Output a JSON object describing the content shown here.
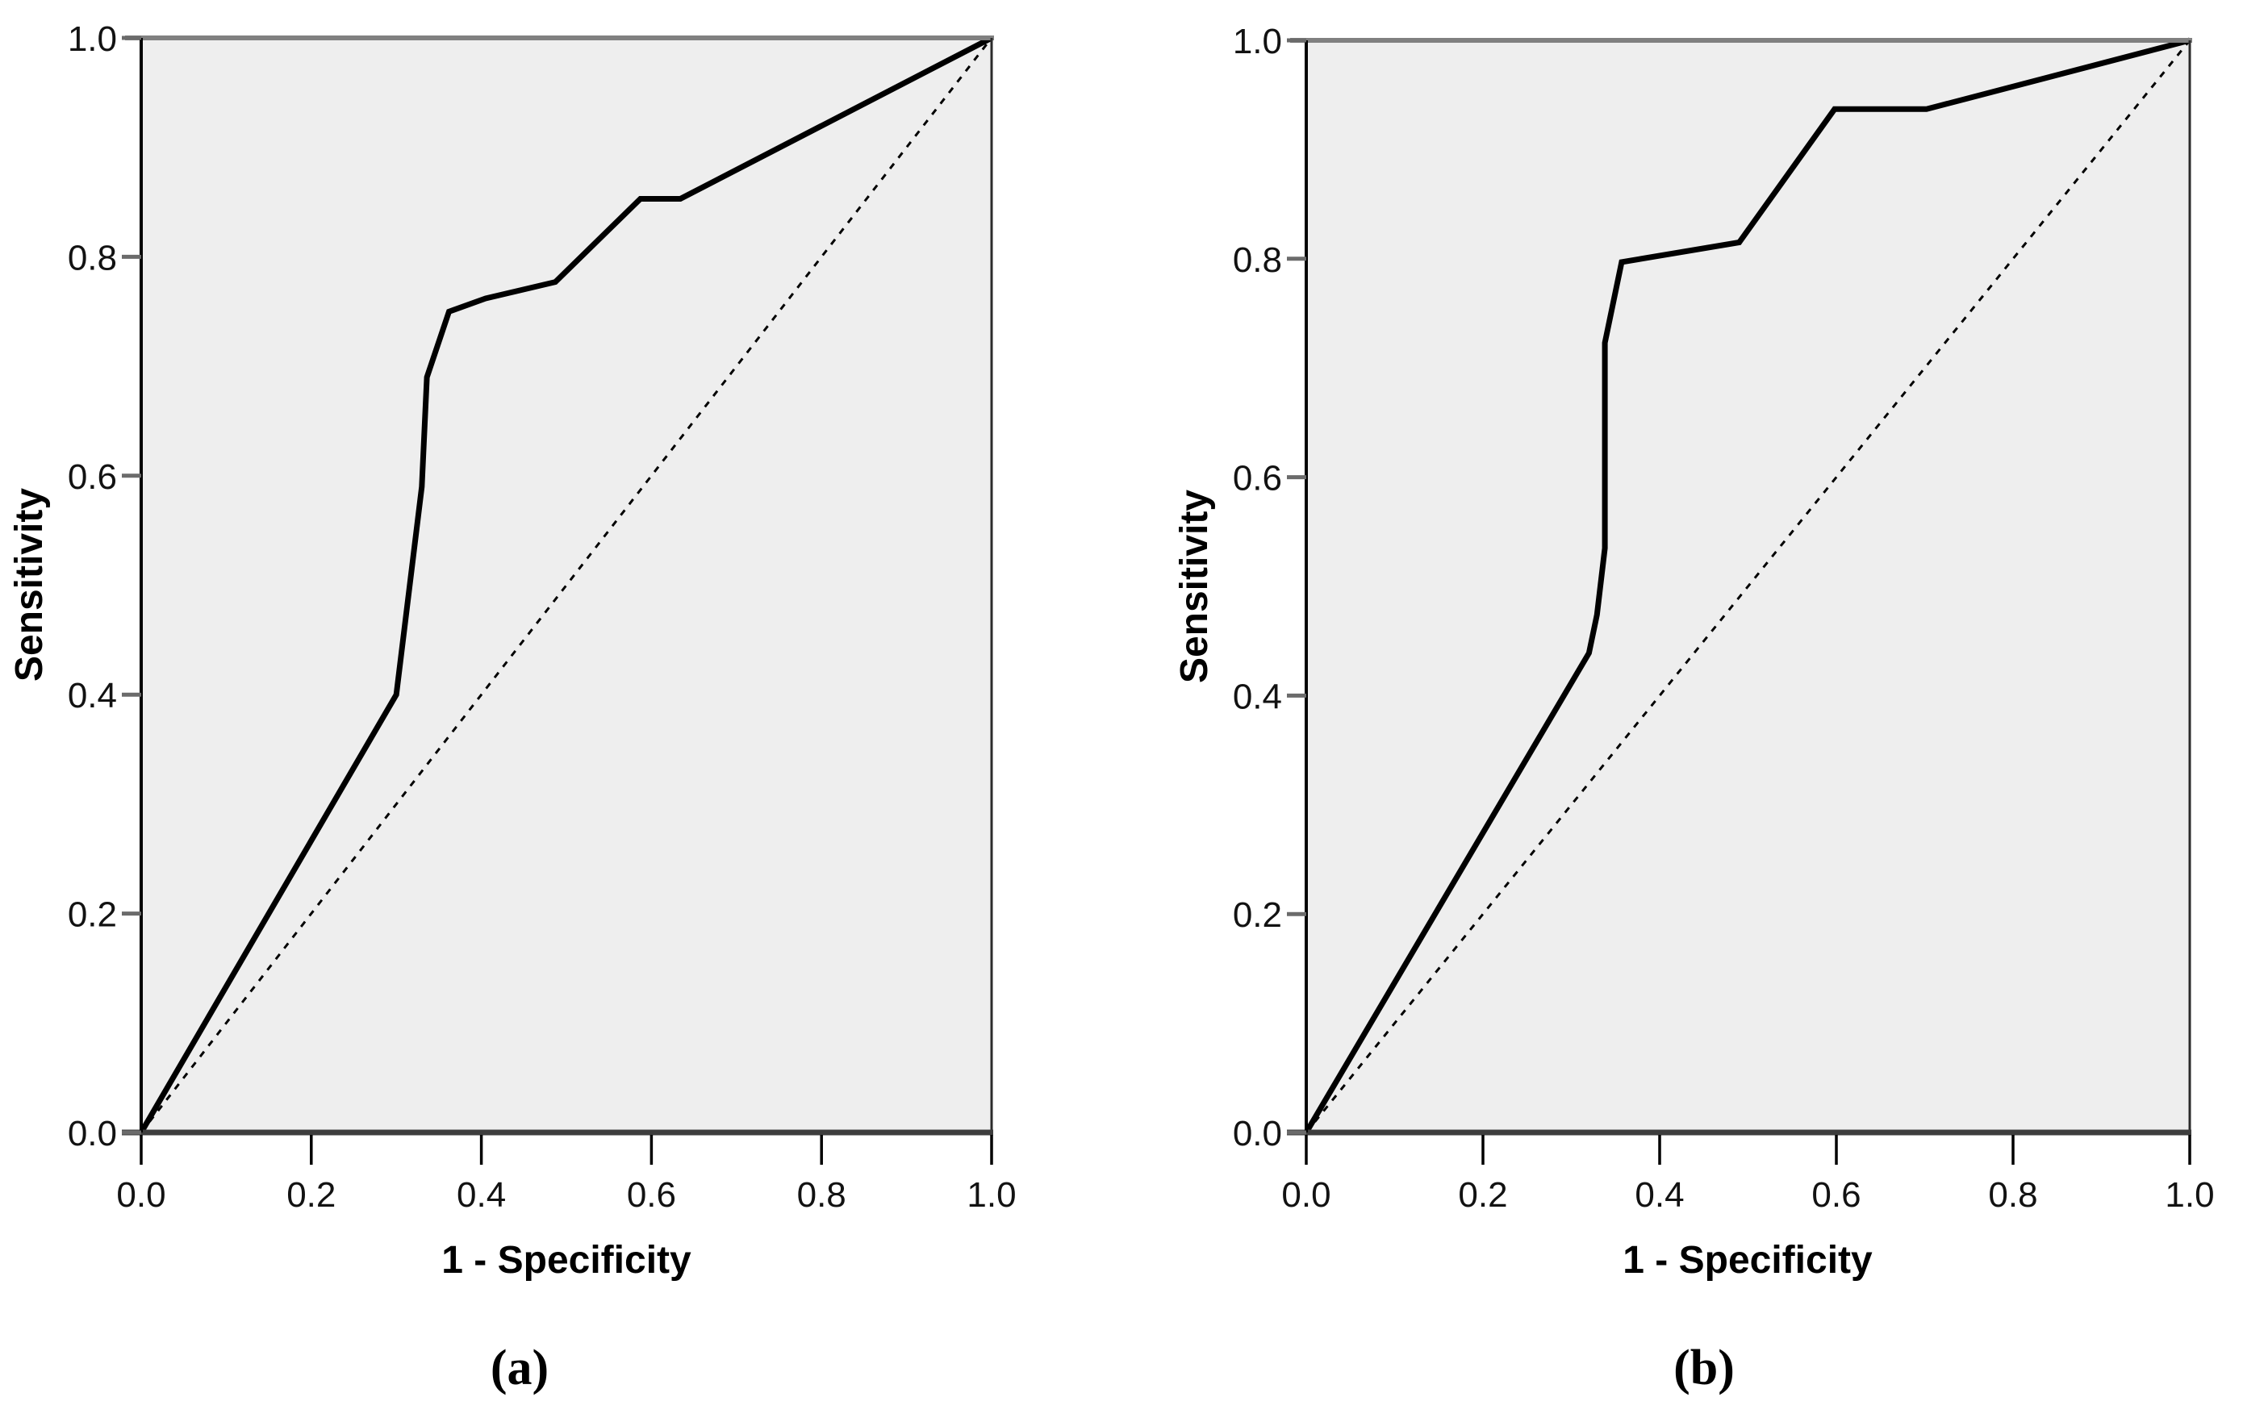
{
  "figure": {
    "description": "Two ROC curve panels side by side",
    "panel_count": 2
  },
  "colors": {
    "page_background": "#ffffff",
    "plot_background": "#eeeeee",
    "curve": "#000000",
    "reference_line": "#000000",
    "frame_top": "#808080",
    "frame_right": "#2b2b2b",
    "frame_bottom": "#3d3d3d",
    "axis_left": "#000000",
    "tick_mark_y": "#6b6b6b",
    "tick_mark_x": "#000000",
    "tick_label": "#121212"
  },
  "chart_data": [
    {
      "id": "a",
      "type": "line",
      "panel_label": "(a)",
      "xlabel": "1 - Specificity",
      "ylabel": "Sensitivity",
      "xlim": [
        0.0,
        1.0
      ],
      "ylim": [
        0.0,
        1.0
      ],
      "x_ticks": [
        "0.0",
        "0.2",
        "0.4",
        "0.6",
        "0.8",
        "1.0"
      ],
      "y_ticks": [
        "0.0",
        "0.2",
        "0.4",
        "0.6",
        "0.8",
        "1.0"
      ],
      "grid": false,
      "legend": "none",
      "series": [
        {
          "name": "roc-curve",
          "style": "solid",
          "points": [
            [
              0.0,
              0.0
            ],
            [
              0.3,
              0.4
            ],
            [
              0.33,
              0.59
            ],
            [
              0.336,
              0.69
            ],
            [
              0.362,
              0.75
            ],
            [
              0.405,
              0.762
            ],
            [
              0.487,
              0.777
            ],
            [
              0.587,
              0.853
            ],
            [
              0.634,
              0.853
            ],
            [
              1.0,
              1.0
            ]
          ]
        },
        {
          "name": "reference-diagonal",
          "style": "dashed",
          "points": [
            [
              0.0,
              0.0
            ],
            [
              1.0,
              1.0
            ]
          ]
        }
      ]
    },
    {
      "id": "b",
      "type": "line",
      "panel_label": "(b)",
      "xlabel": "1 - Specificity",
      "ylabel": "Sensitivity",
      "xlim": [
        0.0,
        1.0
      ],
      "ylim": [
        0.0,
        1.0
      ],
      "x_ticks": [
        "0.0",
        "0.2",
        "0.4",
        "0.6",
        "0.8",
        "1.0"
      ],
      "y_ticks": [
        "0.0",
        "0.2",
        "0.4",
        "0.6",
        "0.8",
        "1.0"
      ],
      "grid": false,
      "legend": "none",
      "series": [
        {
          "name": "roc-curve",
          "style": "solid",
          "points": [
            [
              0.0,
              0.0
            ],
            [
              0.32,
              0.439
            ],
            [
              0.329,
              0.474
            ],
            [
              0.338,
              0.535
            ],
            [
              0.338,
              0.723
            ],
            [
              0.357,
              0.797
            ],
            [
              0.49,
              0.815
            ],
            [
              0.598,
              0.937
            ],
            [
              0.702,
              0.937
            ],
            [
              1.0,
              1.0
            ]
          ]
        },
        {
          "name": "reference-diagonal",
          "style": "dashed",
          "points": [
            [
              0.0,
              0.0
            ],
            [
              1.0,
              1.0
            ]
          ]
        }
      ]
    }
  ]
}
